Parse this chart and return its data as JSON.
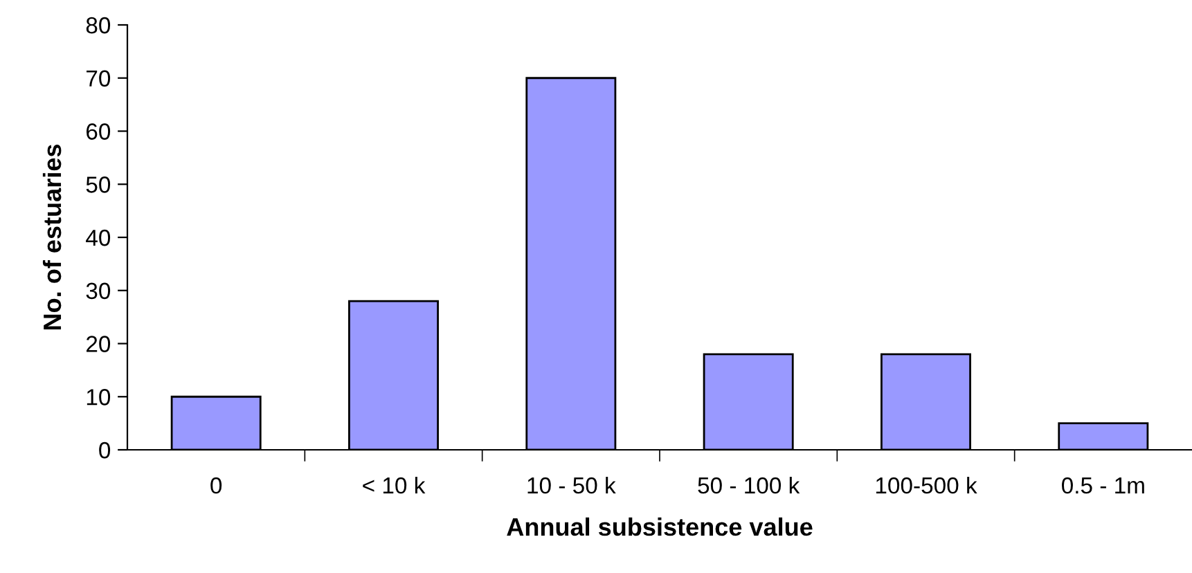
{
  "chart_data": {
    "type": "bar",
    "xlabel": "Annual subsistence value",
    "ylabel": "No. of estuaries",
    "categories": [
      "0",
      "< 10 k",
      "10 - 50 k",
      "50 - 100 k",
      "100-500 k",
      "0.5 - 1m"
    ],
    "values": [
      10,
      28,
      70,
      18,
      18,
      5
    ],
    "color": "#9999ff",
    "ylim": [
      0,
      80
    ],
    "yticks": [
      0,
      10,
      20,
      30,
      40,
      50,
      60,
      70,
      80
    ],
    "grid": false,
    "legend": false
  }
}
